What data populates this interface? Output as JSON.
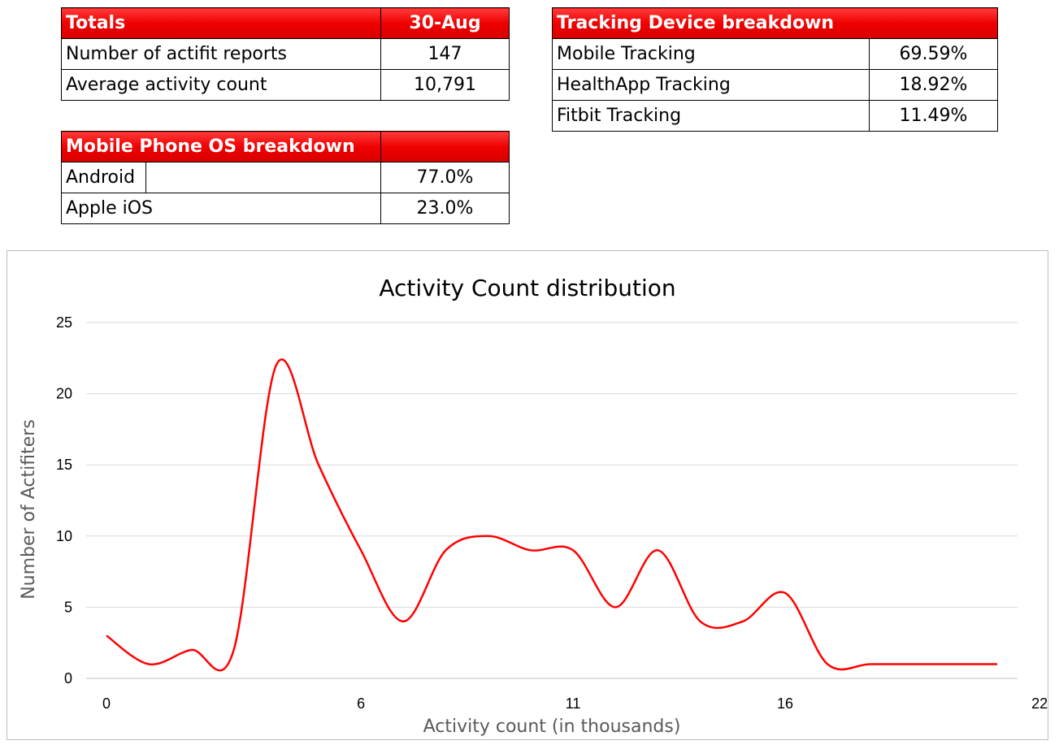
{
  "totals": {
    "header_label": "Totals",
    "header_date": "30-Aug",
    "rows": [
      {
        "label": "Number of actifit reports",
        "value": "147"
      },
      {
        "label": "Average activity count",
        "value": "10,791"
      }
    ]
  },
  "tracking_devices": {
    "header_label": "Tracking Device breakdown",
    "rows": [
      {
        "label": "Mobile Tracking",
        "value": "69.59%"
      },
      {
        "label": "HealthApp Tracking",
        "value": "18.92%"
      },
      {
        "label": "Fitbit Tracking",
        "value": "11.49%"
      }
    ]
  },
  "mobile_os": {
    "header_label": "Mobile Phone OS breakdown",
    "rows": [
      {
        "label": "Android",
        "value": "77.0%"
      },
      {
        "label": "Apple iOS",
        "value": "23.0%"
      }
    ]
  },
  "colors": {
    "header_red": "#ee0000",
    "line": "#ff0000",
    "grid": "#d9d9d9"
  },
  "chart_data": {
    "type": "line",
    "title": "Activity Count distribution",
    "xlabel": "Activity count (in thousands)",
    "ylabel": "Number of Actifiters",
    "x_ticks": [
      "0",
      "6",
      "11",
      "16",
      "22"
    ],
    "y_ticks": [
      "0",
      "5",
      "10",
      "15",
      "20",
      "25"
    ],
    "ylim": [
      0,
      25
    ],
    "grid": true,
    "legend": "none",
    "smooth": true,
    "series": [
      {
        "values": [
          3,
          1,
          2,
          2,
          22,
          15,
          9,
          4,
          9,
          10,
          9,
          9,
          5,
          9,
          4,
          4,
          6,
          1,
          1,
          1,
          1,
          1
        ]
      }
    ]
  }
}
